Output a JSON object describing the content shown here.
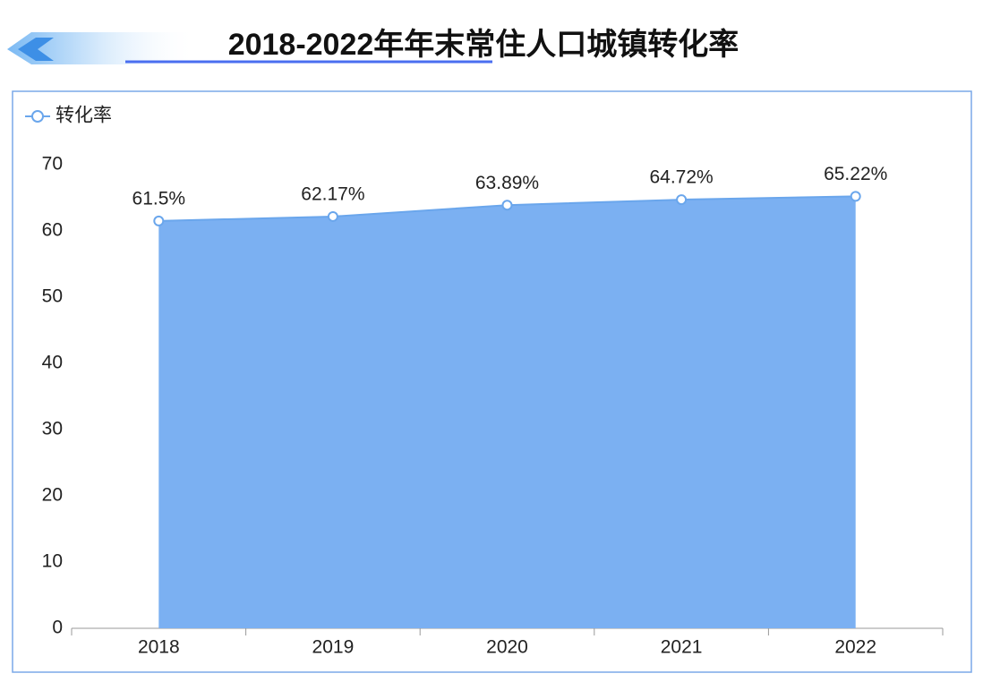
{
  "chart_data": {
    "type": "area",
    "title": "2018-2022年年末常住人口城镇转化率",
    "categories": [
      "2018",
      "2019",
      "2020",
      "2021",
      "2022"
    ],
    "series": [
      {
        "name": "转化率",
        "color": "#6aa6ec",
        "fill": "#7bb0f2",
        "values": [
          61.5,
          62.17,
          63.89,
          64.72,
          65.22
        ],
        "value_labels": [
          "61.5%",
          "62.17%",
          "63.89%",
          "64.72%",
          "65.22%"
        ]
      }
    ],
    "ylim": [
      0,
      70
    ],
    "yticks": [
      0,
      10,
      20,
      30,
      40,
      50,
      60,
      70
    ],
    "grid": false,
    "legend": "top-left"
  }
}
